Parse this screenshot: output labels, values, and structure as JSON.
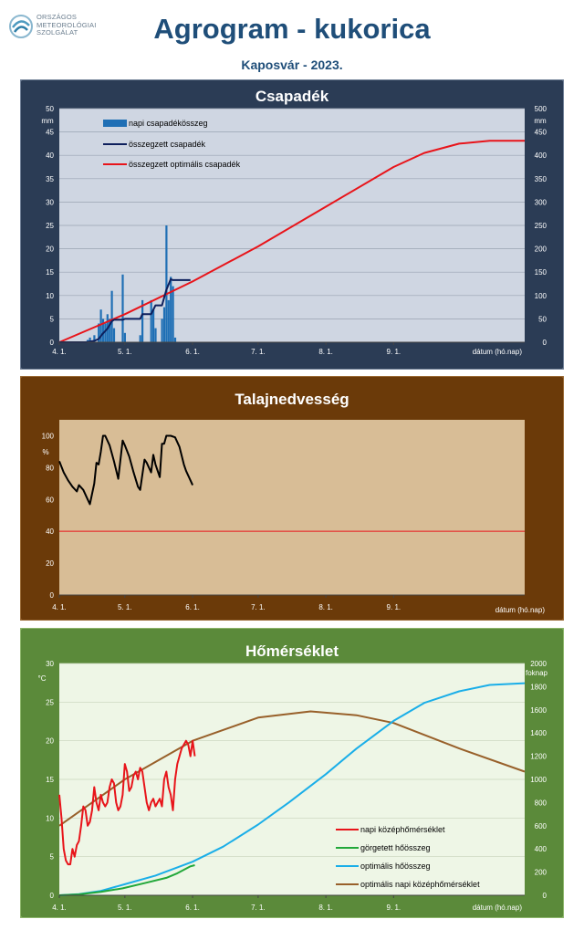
{
  "header": {
    "org_lines": [
      "ORSZÁGOS",
      "METEOROLÓGIAI",
      "SZOLGÁLAT"
    ],
    "title": "Agrogram - kukorica",
    "subtitle": "Kaposvár  - 2023."
  },
  "colors": {
    "title": "#1f4e79",
    "precip_frame": "#2b3c55",
    "soil_frame": "#6b3a09",
    "temp_frame": "#5b8a3a"
  },
  "x_axis": {
    "ticks": [
      "4. 1.",
      "5. 1.",
      "6. 1.",
      "7. 1.",
      "8. 1.",
      "9. 1."
    ],
    "label": "dátum (hó.nap)",
    "start": "04-01",
    "end": "10-31"
  },
  "chart_data": [
    {
      "id": "precip",
      "type": "bar+line",
      "title": "Csapadék",
      "y_left": {
        "unit": "mm",
        "range": [
          0,
          50
        ],
        "ticks": [
          "0",
          "5",
          "10",
          "15",
          "20",
          "25",
          "30",
          "35",
          "40",
          "45",
          "50"
        ]
      },
      "y_right": {
        "unit": "mm",
        "range": [
          0,
          500
        ],
        "ticks": [
          "0",
          "50",
          "100",
          "150",
          "200",
          "250",
          "300",
          "350",
          "400",
          "450",
          "500"
        ]
      },
      "legend": [
        "napi csapadékösszeg",
        "összegzett csapadék",
        "összegzett optimális  csapadék"
      ],
      "daily_precip": [
        {
          "date": "04-14",
          "value": 0.5
        },
        {
          "date": "04-15",
          "value": 1
        },
        {
          "date": "04-17",
          "value": 1.5
        },
        {
          "date": "04-19",
          "value": 4
        },
        {
          "date": "04-20",
          "value": 7
        },
        {
          "date": "04-21",
          "value": 5
        },
        {
          "date": "04-22",
          "value": 4
        },
        {
          "date": "04-23",
          "value": 6
        },
        {
          "date": "04-24",
          "value": 5
        },
        {
          "date": "04-25",
          "value": 11
        },
        {
          "date": "04-26",
          "value": 3
        },
        {
          "date": "04-30",
          "value": 14.5
        },
        {
          "date": "05-01",
          "value": 2
        },
        {
          "date": "05-08",
          "value": 1.5
        },
        {
          "date": "05-09",
          "value": 9
        },
        {
          "date": "05-13",
          "value": 9
        },
        {
          "date": "05-14",
          "value": 7
        },
        {
          "date": "05-15",
          "value": 3
        },
        {
          "date": "05-18",
          "value": 5
        },
        {
          "date": "05-19",
          "value": 7.5
        },
        {
          "date": "05-20",
          "value": 25
        },
        {
          "date": "05-21",
          "value": 9
        },
        {
          "date": "05-22",
          "value": 14
        },
        {
          "date": "05-23",
          "value": 12
        },
        {
          "date": "05-24",
          "value": 1
        }
      ],
      "cumulative_precip": [
        {
          "date": "04-01",
          "value": 0
        },
        {
          "date": "04-13",
          "value": 0
        },
        {
          "date": "04-15",
          "value": 1.5
        },
        {
          "date": "04-17",
          "value": 3
        },
        {
          "date": "04-19",
          "value": 7
        },
        {
          "date": "04-21",
          "value": 19
        },
        {
          "date": "04-23",
          "value": 29
        },
        {
          "date": "04-25",
          "value": 45
        },
        {
          "date": "04-26",
          "value": 48
        },
        {
          "date": "04-30",
          "value": 48
        },
        {
          "date": "05-01",
          "value": 50
        },
        {
          "date": "05-08",
          "value": 50
        },
        {
          "date": "05-09",
          "value": 60
        },
        {
          "date": "05-13",
          "value": 60
        },
        {
          "date": "05-15",
          "value": 79
        },
        {
          "date": "05-18",
          "value": 79
        },
        {
          "date": "05-20",
          "value": 112
        },
        {
          "date": "05-22",
          "value": 135
        },
        {
          "date": "05-23",
          "value": 133
        },
        {
          "date": "05-31",
          "value": 133
        }
      ],
      "optimal_cumulative_precip": [
        {
          "date": "04-01",
          "value": 0
        },
        {
          "date": "05-01",
          "value": 60
        },
        {
          "date": "06-01",
          "value": 130
        },
        {
          "date": "07-01",
          "value": 205
        },
        {
          "date": "08-01",
          "value": 290
        },
        {
          "date": "09-01",
          "value": 375
        },
        {
          "date": "09-15",
          "value": 405
        },
        {
          "date": "10-01",
          "value": 425
        },
        {
          "date": "10-15",
          "value": 431
        },
        {
          "date": "10-31",
          "value": 431
        }
      ]
    },
    {
      "id": "soil",
      "type": "line",
      "title": "Talajnedvesség",
      "y": {
        "unit": "%",
        "range": [
          0,
          110
        ],
        "ticks": [
          "0",
          "20",
          "40",
          "60",
          "80",
          "100"
        ]
      },
      "threshold": 40,
      "soil_moisture": [
        {
          "date": "04-01",
          "value": 84
        },
        {
          "date": "04-03",
          "value": 77
        },
        {
          "date": "04-05",
          "value": 72
        },
        {
          "date": "04-07",
          "value": 68
        },
        {
          "date": "04-09",
          "value": 65
        },
        {
          "date": "04-10",
          "value": 69
        },
        {
          "date": "04-12",
          "value": 66
        },
        {
          "date": "04-14",
          "value": 60
        },
        {
          "date": "04-15",
          "value": 57
        },
        {
          "date": "04-17",
          "value": 70
        },
        {
          "date": "04-18",
          "value": 83
        },
        {
          "date": "04-19",
          "value": 82
        },
        {
          "date": "04-20",
          "value": 90
        },
        {
          "date": "04-21",
          "value": 100
        },
        {
          "date": "04-22",
          "value": 100
        },
        {
          "date": "04-24",
          "value": 94
        },
        {
          "date": "04-26",
          "value": 84
        },
        {
          "date": "04-28",
          "value": 73
        },
        {
          "date": "04-30",
          "value": 97
        },
        {
          "date": "05-01",
          "value": 94
        },
        {
          "date": "05-03",
          "value": 87
        },
        {
          "date": "05-05",
          "value": 77
        },
        {
          "date": "05-07",
          "value": 68
        },
        {
          "date": "05-08",
          "value": 66
        },
        {
          "date": "05-10",
          "value": 85
        },
        {
          "date": "05-11",
          "value": 83
        },
        {
          "date": "05-13",
          "value": 77
        },
        {
          "date": "05-14",
          "value": 88
        },
        {
          "date": "05-15",
          "value": 82
        },
        {
          "date": "05-17",
          "value": 74
        },
        {
          "date": "05-18",
          "value": 95
        },
        {
          "date": "05-19",
          "value": 95
        },
        {
          "date": "05-20",
          "value": 100
        },
        {
          "date": "05-22",
          "value": 100
        },
        {
          "date": "05-24",
          "value": 99
        },
        {
          "date": "05-25",
          "value": 96
        },
        {
          "date": "05-26",
          "value": 93
        },
        {
          "date": "05-28",
          "value": 82
        },
        {
          "date": "05-29",
          "value": 78
        },
        {
          "date": "05-31",
          "value": 72
        },
        {
          "date": "06-01",
          "value": 69
        }
      ]
    },
    {
      "id": "temp",
      "type": "line",
      "title": "Hőmérséklet",
      "y_left": {
        "unit": "°C",
        "range": [
          0,
          30
        ],
        "ticks": [
          "0",
          "5",
          "10",
          "15",
          "20",
          "25",
          "30"
        ]
      },
      "y_right": {
        "unit": "foknap",
        "range": [
          0,
          2000
        ],
        "ticks": [
          "0",
          "200",
          "400",
          "600",
          "800",
          "1000",
          "1200",
          "1400",
          "1600",
          "1800",
          "2000"
        ]
      },
      "legend": [
        "napi középhőmérséklet",
        "görgetett hőösszeg",
        "optimális hőösszeg",
        "optimális napi középhőmérséklet"
      ],
      "daily_mean_temp": [
        {
          "date": "04-01",
          "value": 13
        },
        {
          "date": "04-02",
          "value": 10
        },
        {
          "date": "04-03",
          "value": 6
        },
        {
          "date": "04-04",
          "value": 4.5
        },
        {
          "date": "04-05",
          "value": 4
        },
        {
          "date": "04-06",
          "value": 4
        },
        {
          "date": "04-07",
          "value": 6
        },
        {
          "date": "04-08",
          "value": 5
        },
        {
          "date": "04-09",
          "value": 6.5
        },
        {
          "date": "04-10",
          "value": 7
        },
        {
          "date": "04-11",
          "value": 9
        },
        {
          "date": "04-12",
          "value": 11.5
        },
        {
          "date": "04-13",
          "value": 11
        },
        {
          "date": "04-14",
          "value": 9
        },
        {
          "date": "04-15",
          "value": 9.5
        },
        {
          "date": "04-16",
          "value": 11
        },
        {
          "date": "04-17",
          "value": 14
        },
        {
          "date": "04-18",
          "value": 12
        },
        {
          "date": "04-19",
          "value": 11
        },
        {
          "date": "04-20",
          "value": 13
        },
        {
          "date": "04-21",
          "value": 12
        },
        {
          "date": "04-22",
          "value": 11.5
        },
        {
          "date": "04-23",
          "value": 12
        },
        {
          "date": "04-24",
          "value": 14
        },
        {
          "date": "04-25",
          "value": 15
        },
        {
          "date": "04-26",
          "value": 14.5
        },
        {
          "date": "04-27",
          "value": 12
        },
        {
          "date": "04-28",
          "value": 11
        },
        {
          "date": "04-29",
          "value": 11.5
        },
        {
          "date": "04-30",
          "value": 13
        },
        {
          "date": "05-01",
          "value": 17
        },
        {
          "date": "05-02",
          "value": 16
        },
        {
          "date": "05-03",
          "value": 13.5
        },
        {
          "date": "05-04",
          "value": 14
        },
        {
          "date": "05-05",
          "value": 15.5
        },
        {
          "date": "05-06",
          "value": 16
        },
        {
          "date": "05-07",
          "value": 15
        },
        {
          "date": "05-08",
          "value": 16.5
        },
        {
          "date": "05-09",
          "value": 16
        },
        {
          "date": "05-10",
          "value": 14
        },
        {
          "date": "05-11",
          "value": 12
        },
        {
          "date": "05-12",
          "value": 11
        },
        {
          "date": "05-13",
          "value": 12
        },
        {
          "date": "05-14",
          "value": 12.5
        },
        {
          "date": "05-15",
          "value": 11.5
        },
        {
          "date": "05-16",
          "value": 12
        },
        {
          "date": "05-17",
          "value": 12.5
        },
        {
          "date": "05-18",
          "value": 11.5
        },
        {
          "date": "05-19",
          "value": 15
        },
        {
          "date": "05-20",
          "value": 16
        },
        {
          "date": "05-21",
          "value": 14
        },
        {
          "date": "05-22",
          "value": 13
        },
        {
          "date": "05-23",
          "value": 11
        },
        {
          "date": "05-24",
          "value": 15
        },
        {
          "date": "05-25",
          "value": 17
        },
        {
          "date": "05-26",
          "value": 18
        },
        {
          "date": "05-27",
          "value": 19
        },
        {
          "date": "05-28",
          "value": 19.5
        },
        {
          "date": "05-29",
          "value": 20
        },
        {
          "date": "05-30",
          "value": 19.5
        },
        {
          "date": "05-31",
          "value": 18
        },
        {
          "date": "06-01",
          "value": 20
        },
        {
          "date": "06-02",
          "value": 18
        }
      ],
      "rolling_heat_sum": [
        {
          "date": "04-01",
          "value": 0
        },
        {
          "date": "04-10",
          "value": 8
        },
        {
          "date": "04-20",
          "value": 30
        },
        {
          "date": "04-30",
          "value": 60
        },
        {
          "date": "05-10",
          "value": 105
        },
        {
          "date": "05-20",
          "value": 150
        },
        {
          "date": "05-25",
          "value": 190
        },
        {
          "date": "05-31",
          "value": 250
        },
        {
          "date": "06-02",
          "value": 260
        }
      ],
      "optimal_heat_sum": [
        {
          "date": "04-01",
          "value": 0
        },
        {
          "date": "04-10",
          "value": 10
        },
        {
          "date": "04-20",
          "value": 38
        },
        {
          "date": "05-01",
          "value": 95
        },
        {
          "date": "05-15",
          "value": 170
        },
        {
          "date": "06-01",
          "value": 290
        },
        {
          "date": "06-15",
          "value": 420
        },
        {
          "date": "07-01",
          "value": 610
        },
        {
          "date": "07-15",
          "value": 800
        },
        {
          "date": "08-01",
          "value": 1045
        },
        {
          "date": "08-15",
          "value": 1265
        },
        {
          "date": "09-01",
          "value": 1505
        },
        {
          "date": "09-15",
          "value": 1660
        },
        {
          "date": "10-01",
          "value": 1760
        },
        {
          "date": "10-15",
          "value": 1815
        },
        {
          "date": "10-31",
          "value": 1830
        }
      ],
      "optimal_daily_mean_temp": [
        {
          "date": "04-01",
          "value": 9
        },
        {
          "date": "05-01",
          "value": 15
        },
        {
          "date": "06-01",
          "value": 20
        },
        {
          "date": "07-01",
          "value": 23
        },
        {
          "date": "07-25",
          "value": 23.8
        },
        {
          "date": "08-15",
          "value": 23.3
        },
        {
          "date": "09-01",
          "value": 22.3
        },
        {
          "date": "10-01",
          "value": 19
        },
        {
          "date": "10-31",
          "value": 16
        }
      ]
    }
  ]
}
